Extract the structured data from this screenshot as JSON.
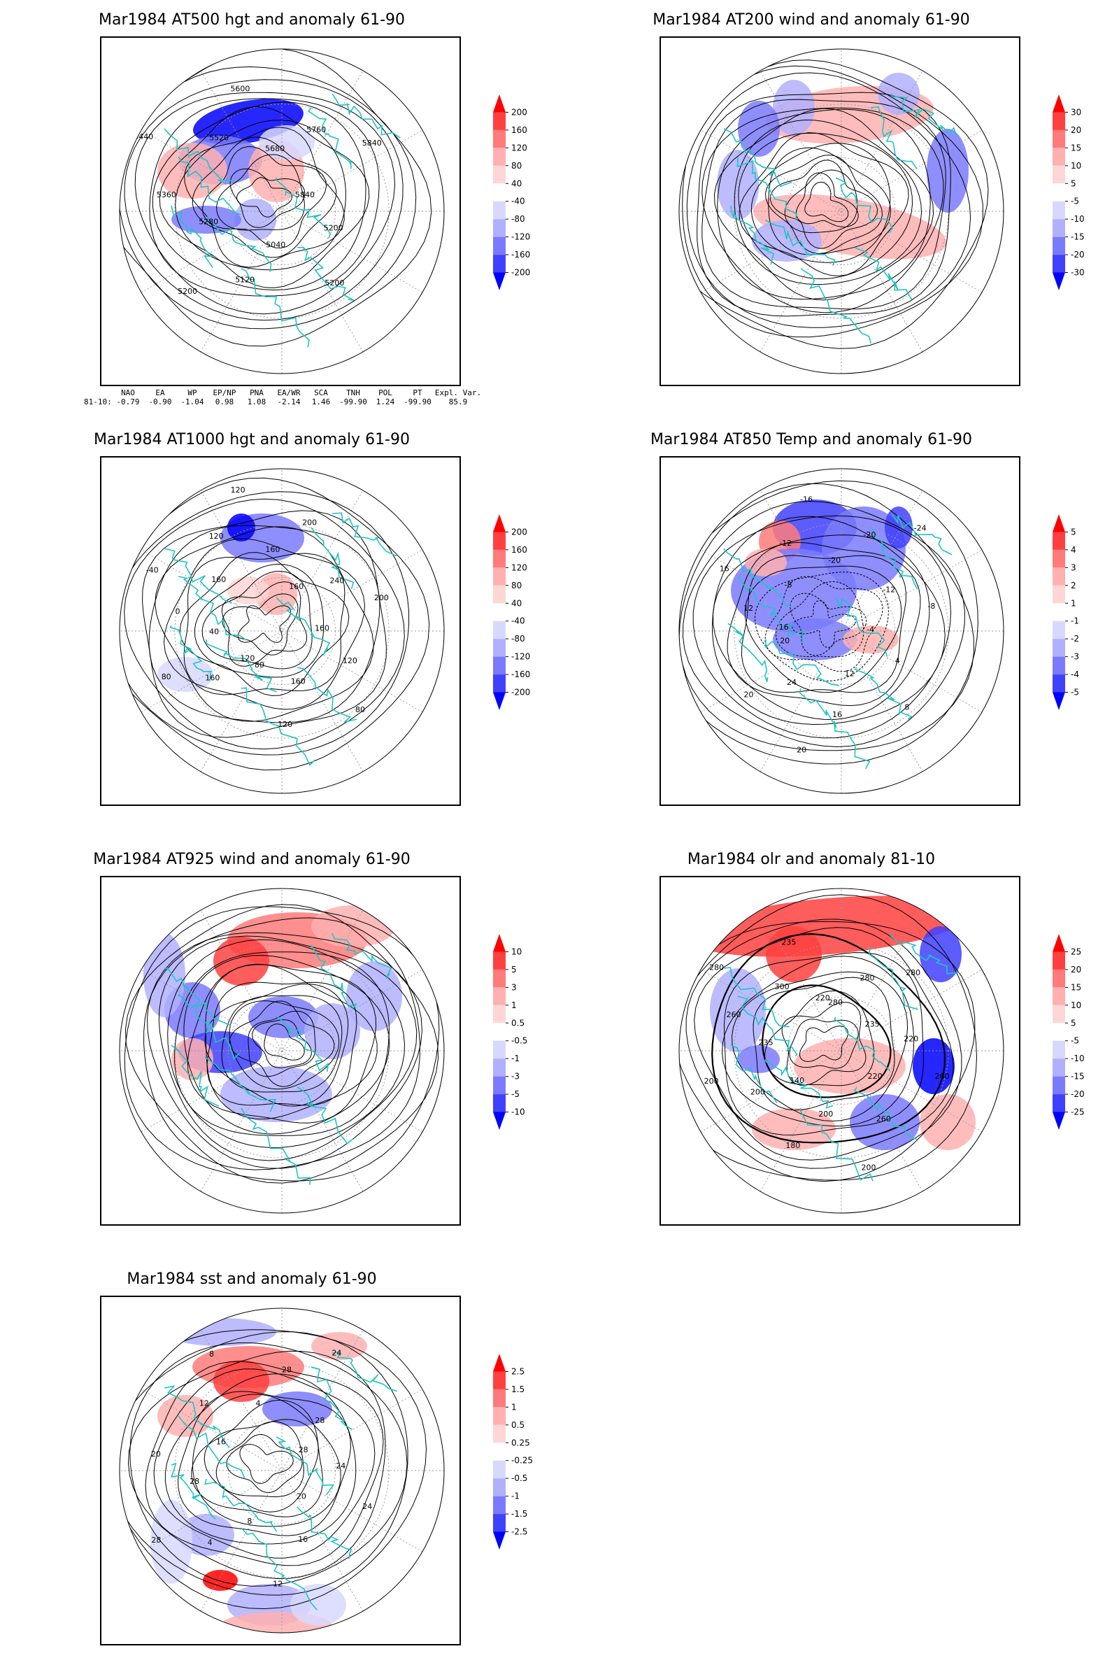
{
  "colors": {
    "coast": "#1fc4c4",
    "pos": "#ff2020",
    "neg": "#2f3cff",
    "contour": "#000000"
  },
  "panels": [
    {
      "id": "p1",
      "title": "Mar1984 AT500 hgt and anomaly 61-90",
      "colorbar": [
        "200",
        "160",
        "120",
        "80",
        "40",
        "-40",
        "-80",
        "-120",
        "-160",
        "-200"
      ],
      "contour_labels": [
        "5840",
        "5200",
        "5200",
        "5040",
        "5120",
        "5200",
        "5280",
        "5360",
        "5440",
        "5520",
        "5600",
        "5680",
        "5760",
        "5840"
      ]
    },
    {
      "id": "p2",
      "title": "Mar1984 AT200 wind and anomaly 61-90",
      "colorbar": [
        "30",
        "20",
        "15",
        "10",
        "5",
        "-5",
        "-10",
        "-15",
        "-20",
        "-30"
      ],
      "contour_labels": []
    },
    {
      "id": "p3",
      "title": "Mar1984 AT1000 hgt and anomaly 61-90",
      "colorbar": [
        "200",
        "160",
        "120",
        "80",
        "40",
        "-40",
        "-80",
        "-120",
        "-160",
        "-200"
      ],
      "contour_labels": [
        "120",
        "160",
        "80",
        "40",
        "0",
        "-40",
        "160",
        "120",
        "120",
        "160",
        "200",
        "160",
        "240",
        "200",
        "160",
        "120",
        "80",
        "160",
        "120",
        "80"
      ]
    },
    {
      "id": "p4",
      "title": "Mar1984 AT850 Temp and anomaly 61-90",
      "colorbar": [
        "5",
        "4",
        "3",
        "2",
        "1",
        "-1",
        "-2",
        "-3",
        "-4",
        "-5"
      ],
      "contour_labels": [
        "16",
        "12",
        "16",
        "-8",
        "-12",
        "-16",
        "-20",
        "-20",
        "-24",
        "-12",
        "-8",
        "-4",
        "4",
        "8",
        "12",
        "16",
        "20",
        "24",
        "20",
        "20"
      ]
    },
    {
      "id": "p5",
      "title": "Mar1984 AT925 wind and anomaly 61-90",
      "colorbar": [
        "10",
        "5",
        "3",
        "1",
        "0.5",
        "-0.5",
        "-1",
        "-3",
        "-5",
        "-10"
      ],
      "contour_labels": []
    },
    {
      "id": "p6",
      "title": "Mar1984 olr and anomaly 81-10",
      "colorbar": [
        "25",
        "20",
        "15",
        "10",
        "5",
        "-5",
        "-10",
        "-15",
        "-20",
        "-25"
      ],
      "contour_labels": [
        "280",
        "280",
        "280",
        "235",
        "220",
        "260",
        "220",
        "260",
        "200",
        "200",
        "180",
        "140",
        "200",
        "200",
        "235",
        "260",
        "280",
        "300",
        "235",
        "220"
      ]
    },
    {
      "id": "p7",
      "title": "Mar1984 sst and anomaly 61-90",
      "colorbar": [
        "2.5",
        "1.5",
        "1",
        "0.5",
        "0.25",
        "-0.25",
        "-0.5",
        "-1",
        "-1.5",
        "-2.5"
      ],
      "contour_labels": [
        "28",
        "24",
        "24",
        "20",
        "16",
        "12",
        "8",
        "4",
        "28",
        "28",
        "20",
        "16",
        "12",
        "8",
        "4",
        "28",
        "24",
        "28"
      ]
    }
  ],
  "teleconnections": {
    "headers": [
      "NAO",
      "EA",
      "WP",
      "EP/NP",
      "PNA",
      "EA/WR",
      "SCA",
      "TNH",
      "POL",
      "PT",
      "Expl. Var."
    ],
    "row_label": "81-10:",
    "values": [
      "-0.79",
      "-0.90",
      "-1.04",
      "0.98",
      "1.08",
      "-2.14",
      "1.46",
      "-99.90",
      "1.24",
      "-99.90",
      "85.9"
    ]
  }
}
